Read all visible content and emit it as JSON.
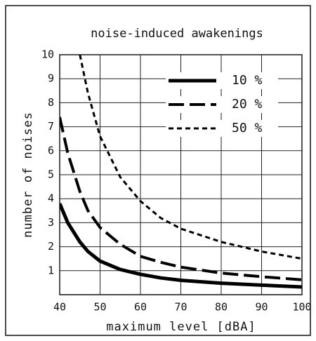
{
  "chart_data": {
    "type": "line",
    "title": "noise-induced awakenings",
    "x_label": "maximum level [dBA]",
    "y_label": "number of noises",
    "xlim": [
      40,
      100
    ],
    "xticks": [
      40,
      50,
      60,
      70,
      80,
      90,
      100
    ],
    "ylim": [
      0,
      10
    ],
    "yticks": [
      1,
      2,
      3,
      4,
      5,
      6,
      7,
      8,
      9,
      10
    ],
    "grid": true,
    "legend": "upper right",
    "x": [
      40,
      42,
      45,
      47,
      50,
      55,
      60,
      65,
      70,
      80,
      90,
      100
    ],
    "series": [
      {
        "name": "10 %",
        "color": "#000000",
        "line_style": "solid",
        "values": [
          3.8,
          3.0,
          2.2,
          1.8,
          1.4,
          1.05,
          0.85,
          0.7,
          0.6,
          0.48,
          0.4,
          0.32
        ]
      },
      {
        "name": "20 %",
        "color": "#000000",
        "line_style": "long-dash",
        "values": [
          7.4,
          5.9,
          4.3,
          3.5,
          2.8,
          2.1,
          1.6,
          1.35,
          1.15,
          0.9,
          0.75,
          0.62
        ]
      },
      {
        "name": "50 %",
        "color": "#000000",
        "line_style": "short-dash",
        "values": [
          null,
          null,
          10,
          8.4,
          6.6,
          4.9,
          3.9,
          3.2,
          2.75,
          2.2,
          1.8,
          1.5
        ]
      }
    ]
  }
}
